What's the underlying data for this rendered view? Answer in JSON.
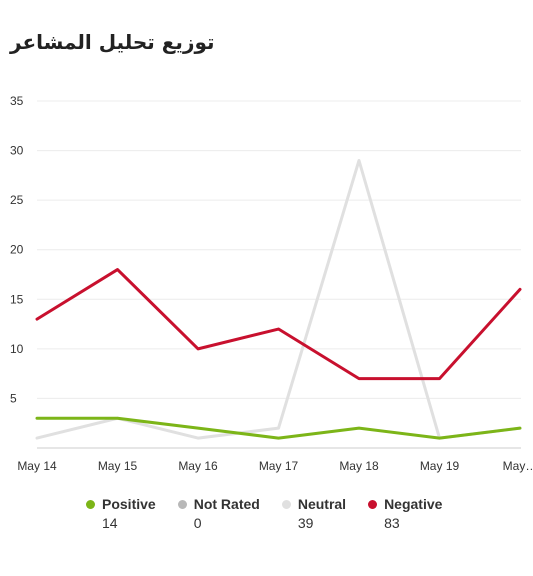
{
  "chart_data": {
    "type": "line",
    "title": "توزيع تحليل المشاعر",
    "x": [
      "May 14",
      "May 15",
      "May 16",
      "May 17",
      "May 18",
      "May 19",
      "May…"
    ],
    "yticks": [
      5,
      10,
      15,
      20,
      25,
      30,
      35
    ],
    "ylim": [
      0,
      35
    ],
    "grid": true,
    "legend_position": "bottom",
    "series": [
      {
        "name": "Positive",
        "color": "#7cb518",
        "values": [
          3,
          3,
          2,
          1,
          2,
          1,
          2
        ],
        "total": "14"
      },
      {
        "name": "Not Rated",
        "color": "#b8b8b8",
        "values": [
          0,
          0,
          0,
          0,
          0,
          0,
          0
        ],
        "total": "0"
      },
      {
        "name": "Neutral",
        "color": "#e0e0e0",
        "values": [
          1,
          3,
          1,
          2,
          29,
          1,
          2
        ],
        "total": "39"
      },
      {
        "name": "Negative",
        "color": "#c8102e",
        "values": [
          13,
          18,
          10,
          12,
          7,
          7,
          16
        ],
        "total": "83"
      }
    ]
  }
}
